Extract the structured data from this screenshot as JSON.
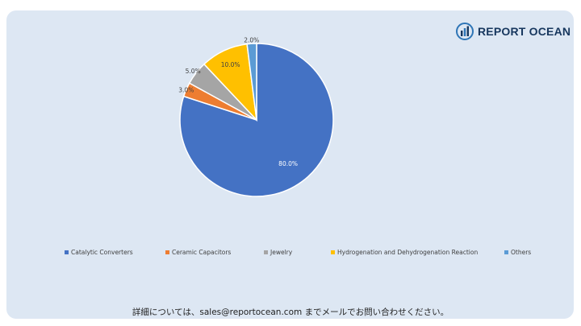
{
  "brand": {
    "name": "REPORT OCEAN"
  },
  "footer": {
    "text": "詳細については、sales@reportocean.com までメールでお問い合わせください。"
  },
  "chart_data": {
    "type": "pie",
    "title": "",
    "categories": [
      "Catalytic Converters",
      "Ceramic Capacitors",
      "Jewelry",
      "Hydrogenation and Dehydrogenation Reaction",
      "Others"
    ],
    "values": [
      80.0,
      3.0,
      5.0,
      10.0,
      2.0
    ],
    "labels": [
      "80.0%",
      "3.0%",
      "5.0%",
      "10.0%",
      "2.0%"
    ],
    "colors": [
      "#4472c4",
      "#ed7d31",
      "#a5a5a5",
      "#ffc000",
      "#5b9bd5"
    ],
    "start_angle": "12 o'clock",
    "direction": "clockwise",
    "legend": "bottom"
  }
}
